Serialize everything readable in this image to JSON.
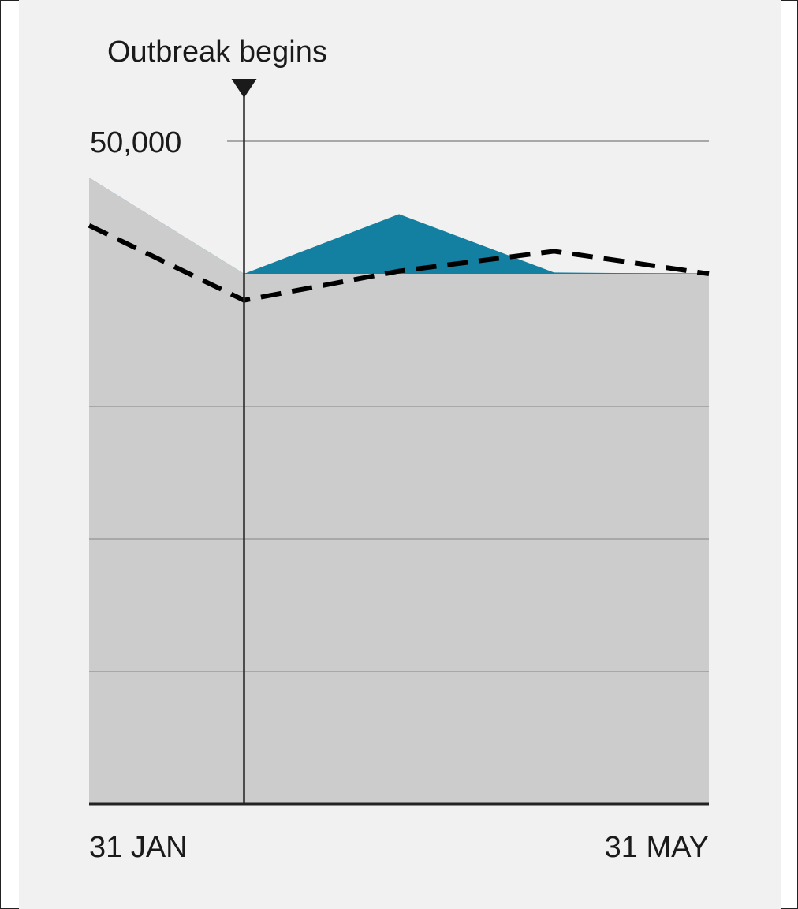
{
  "chart_data": {
    "type": "area",
    "annotation": "Outbreak begins",
    "x_labels": {
      "start": "31 JAN",
      "end": "31 MAY"
    },
    "y_tick_label": "50,000",
    "ylim": [
      0,
      50000
    ],
    "gridlines": [
      10000,
      20000,
      30000,
      40000,
      50000
    ],
    "x": [
      0,
      1,
      2,
      3,
      4
    ],
    "outbreak_x": 1,
    "series": [
      {
        "kind": "area",
        "values": [
          47250,
          40000,
          40000,
          40000,
          40000
        ]
      },
      {
        "kind": "excess",
        "values": [
          40000,
          40000,
          44500,
          40100,
          40000
        ]
      },
      {
        "kind": "dashed",
        "values": [
          43650,
          38000,
          40200,
          41700,
          40000
        ]
      }
    ],
    "colors": {
      "area": "#cccccc",
      "excess": "#1380a1",
      "dashed": "#000000",
      "grid": "#a8a8a8",
      "axis": "#222222",
      "background": "#f1f1f1"
    }
  }
}
